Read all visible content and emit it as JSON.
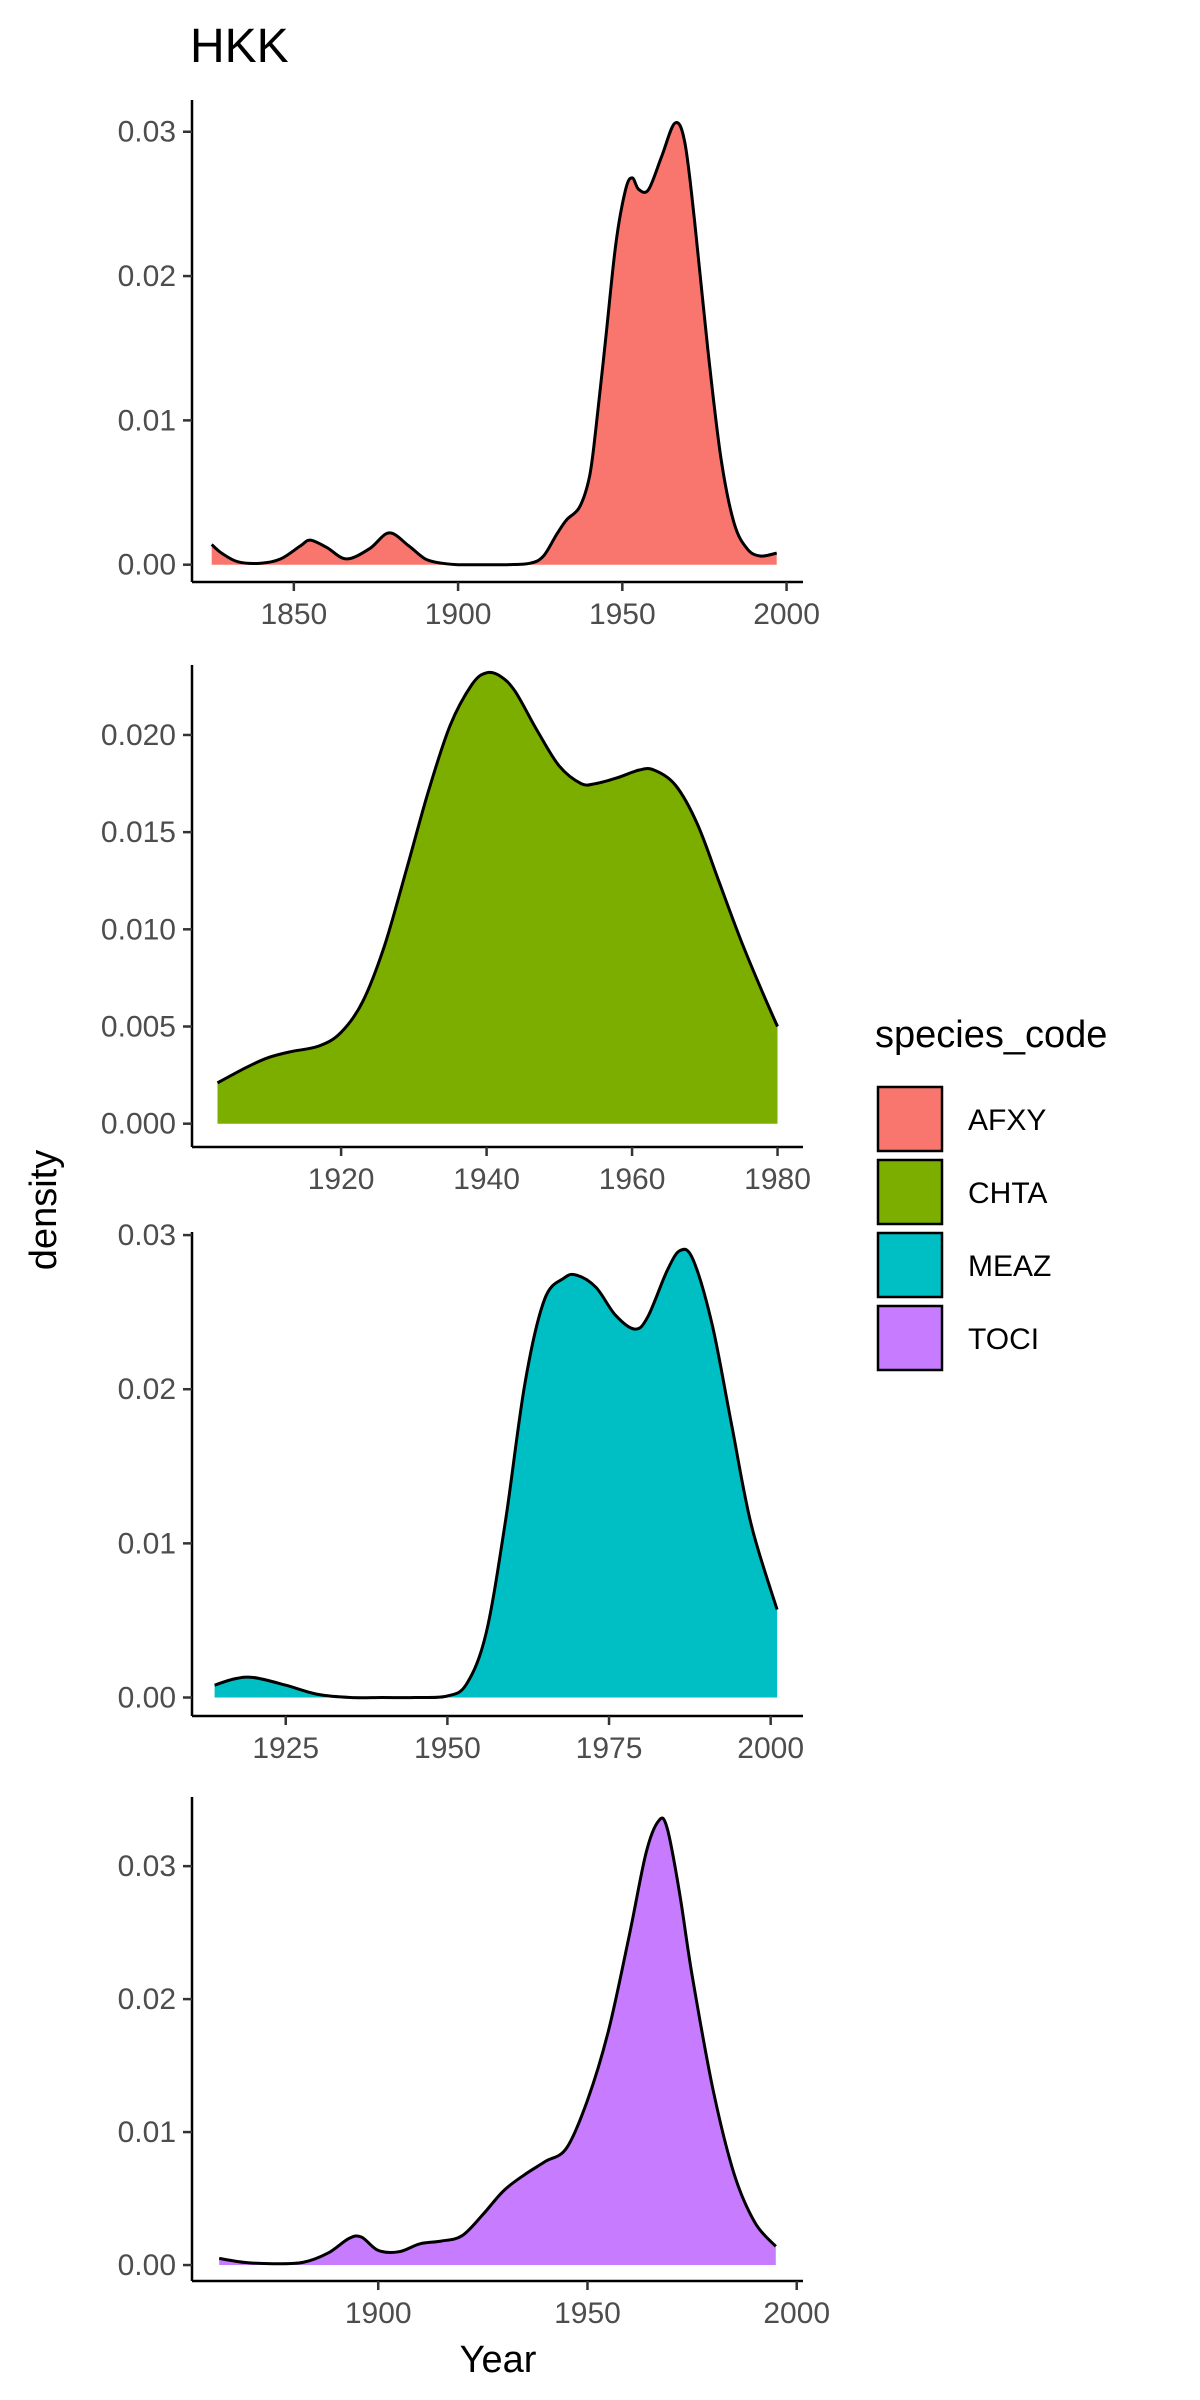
{
  "title": "HKK",
  "xlabel": "Year",
  "ylabel": "density",
  "legend": {
    "title": "species_code",
    "placement": "right",
    "items": [
      {
        "label": "AFXY",
        "color": "#F8766D"
      },
      {
        "label": "CHTA",
        "color": "#7CAE00"
      },
      {
        "label": "MEAZ",
        "color": "#00BFC4"
      },
      {
        "label": "TOCI",
        "color": "#C77CFF"
      }
    ]
  },
  "chart_data": [
    {
      "type": "area",
      "series_name": "AFXY",
      "color": "#F8766D",
      "xlim": [
        1819,
        2005
      ],
      "ylim": [
        -0.0012,
        0.0322
      ],
      "xticks": [
        1850,
        1900,
        1950,
        2000
      ],
      "xtick_labels": [
        "1850",
        "1900",
        "1950",
        "2000"
      ],
      "yticks": [
        0,
        0.01,
        0.02,
        0.03
      ],
      "ytick_labels": [
        "0.00",
        "0.01",
        "0.02",
        "0.03"
      ],
      "x": [
        1825,
        1828,
        1833,
        1840,
        1846,
        1852,
        1855,
        1860,
        1866,
        1873,
        1879,
        1885,
        1890,
        1895,
        1900,
        1905,
        1915,
        1922,
        1926,
        1930,
        1933,
        1937,
        1940,
        1942,
        1945,
        1948,
        1951,
        1953,
        1955,
        1958,
        1962,
        1966,
        1969,
        1972,
        1976,
        1980,
        1984,
        1988,
        1992,
        1997
      ],
      "y": [
        0.0014,
        0.0008,
        0.0002,
        0.0001,
        0.0004,
        0.0013,
        0.0017,
        0.0012,
        0.0004,
        0.0011,
        0.0022,
        0.0013,
        0.0004,
        0.0001,
        0.0,
        0.0,
        0.0,
        0.0001,
        0.0006,
        0.0021,
        0.0031,
        0.004,
        0.0061,
        0.0095,
        0.0158,
        0.0222,
        0.026,
        0.0268,
        0.026,
        0.026,
        0.0283,
        0.0306,
        0.0293,
        0.0238,
        0.015,
        0.0074,
        0.0029,
        0.0011,
        0.0006,
        0.0008
      ]
    },
    {
      "type": "area",
      "series_name": "CHTA",
      "color": "#7CAE00",
      "xlim": [
        1899.5,
        1983.5
      ],
      "ylim": [
        -0.0012,
        0.0236
      ],
      "xticks": [
        1920,
        1940,
        1960,
        1980
      ],
      "xtick_labels": [
        "1920",
        "1940",
        "1960",
        "1980"
      ],
      "yticks": [
        0,
        0.005,
        0.01,
        0.015,
        0.02
      ],
      "ytick_labels": [
        "0.000",
        "0.005",
        "0.010",
        "0.015",
        "0.020"
      ],
      "x": [
        1903,
        1907,
        1910,
        1913,
        1917,
        1920,
        1923,
        1926,
        1929,
        1932,
        1935,
        1938,
        1940,
        1942,
        1944,
        1947,
        1950,
        1953,
        1955,
        1958,
        1961,
        1963,
        1966,
        1969,
        1972,
        1975,
        1978,
        1980
      ],
      "y": [
        0.0021,
        0.0029,
        0.0034,
        0.0037,
        0.004,
        0.0047,
        0.0063,
        0.0092,
        0.0131,
        0.0171,
        0.0205,
        0.0226,
        0.0232,
        0.023,
        0.0222,
        0.0202,
        0.0184,
        0.0175,
        0.0175,
        0.0178,
        0.0182,
        0.0182,
        0.0174,
        0.0154,
        0.0124,
        0.0094,
        0.0067,
        0.005
      ]
    },
    {
      "type": "area",
      "series_name": "MEAZ",
      "color": "#00BFC4",
      "xlim": [
        1910.5,
        2005
      ],
      "ylim": [
        -0.0012,
        0.0302
      ],
      "xticks": [
        1925,
        1950,
        1975,
        2000
      ],
      "xtick_labels": [
        "1925",
        "1950",
        "1975",
        "2000"
      ],
      "yticks": [
        0,
        0.01,
        0.02,
        0.03
      ],
      "ytick_labels": [
        "0.00",
        "0.01",
        "0.02",
        "0.03"
      ],
      "x": [
        1914,
        1917,
        1920,
        1925,
        1930,
        1935,
        1940,
        1945,
        1950,
        1953,
        1956,
        1959,
        1962,
        1965,
        1968,
        1970,
        1973,
        1976,
        1979,
        1981,
        1984,
        1986,
        1988,
        1991,
        1994,
        1997,
        2001
      ],
      "y": [
        0.0008,
        0.0012,
        0.0013,
        0.0008,
        0.0002,
        0.0,
        0.0,
        0.0,
        0.0001,
        0.0009,
        0.0042,
        0.0115,
        0.0204,
        0.0258,
        0.0272,
        0.0274,
        0.0266,
        0.0248,
        0.0239,
        0.0247,
        0.0277,
        0.029,
        0.0284,
        0.0241,
        0.0176,
        0.0112,
        0.0057
      ]
    },
    {
      "type": "area",
      "series_name": "TOCI",
      "color": "#C77CFF",
      "xlim": [
        1855.5,
        2001.5
      ],
      "ylim": [
        -0.0012,
        0.0352
      ],
      "xticks": [
        1900,
        1950,
        2000
      ],
      "xtick_labels": [
        "1900",
        "1950",
        "2000"
      ],
      "yticks": [
        0,
        0.01,
        0.02,
        0.03
      ],
      "ytick_labels": [
        "0.00",
        "0.01",
        "0.02",
        "0.03"
      ],
      "x": [
        1862,
        1868,
        1875,
        1882,
        1888,
        1893,
        1896,
        1900,
        1905,
        1910,
        1915,
        1920,
        1925,
        1930,
        1935,
        1940,
        1945,
        1950,
        1955,
        1960,
        1964,
        1967,
        1969,
        1972,
        1975,
        1980,
        1985,
        1990,
        1995
      ],
      "y": [
        0.0005,
        0.0002,
        0.0001,
        0.0002,
        0.0009,
        0.002,
        0.0021,
        0.0011,
        0.001,
        0.0016,
        0.0018,
        0.0022,
        0.0038,
        0.0056,
        0.0068,
        0.0078,
        0.0088,
        0.0124,
        0.0176,
        0.0248,
        0.031,
        0.0334,
        0.0329,
        0.028,
        0.0218,
        0.0132,
        0.0069,
        0.0032,
        0.0014
      ]
    }
  ]
}
